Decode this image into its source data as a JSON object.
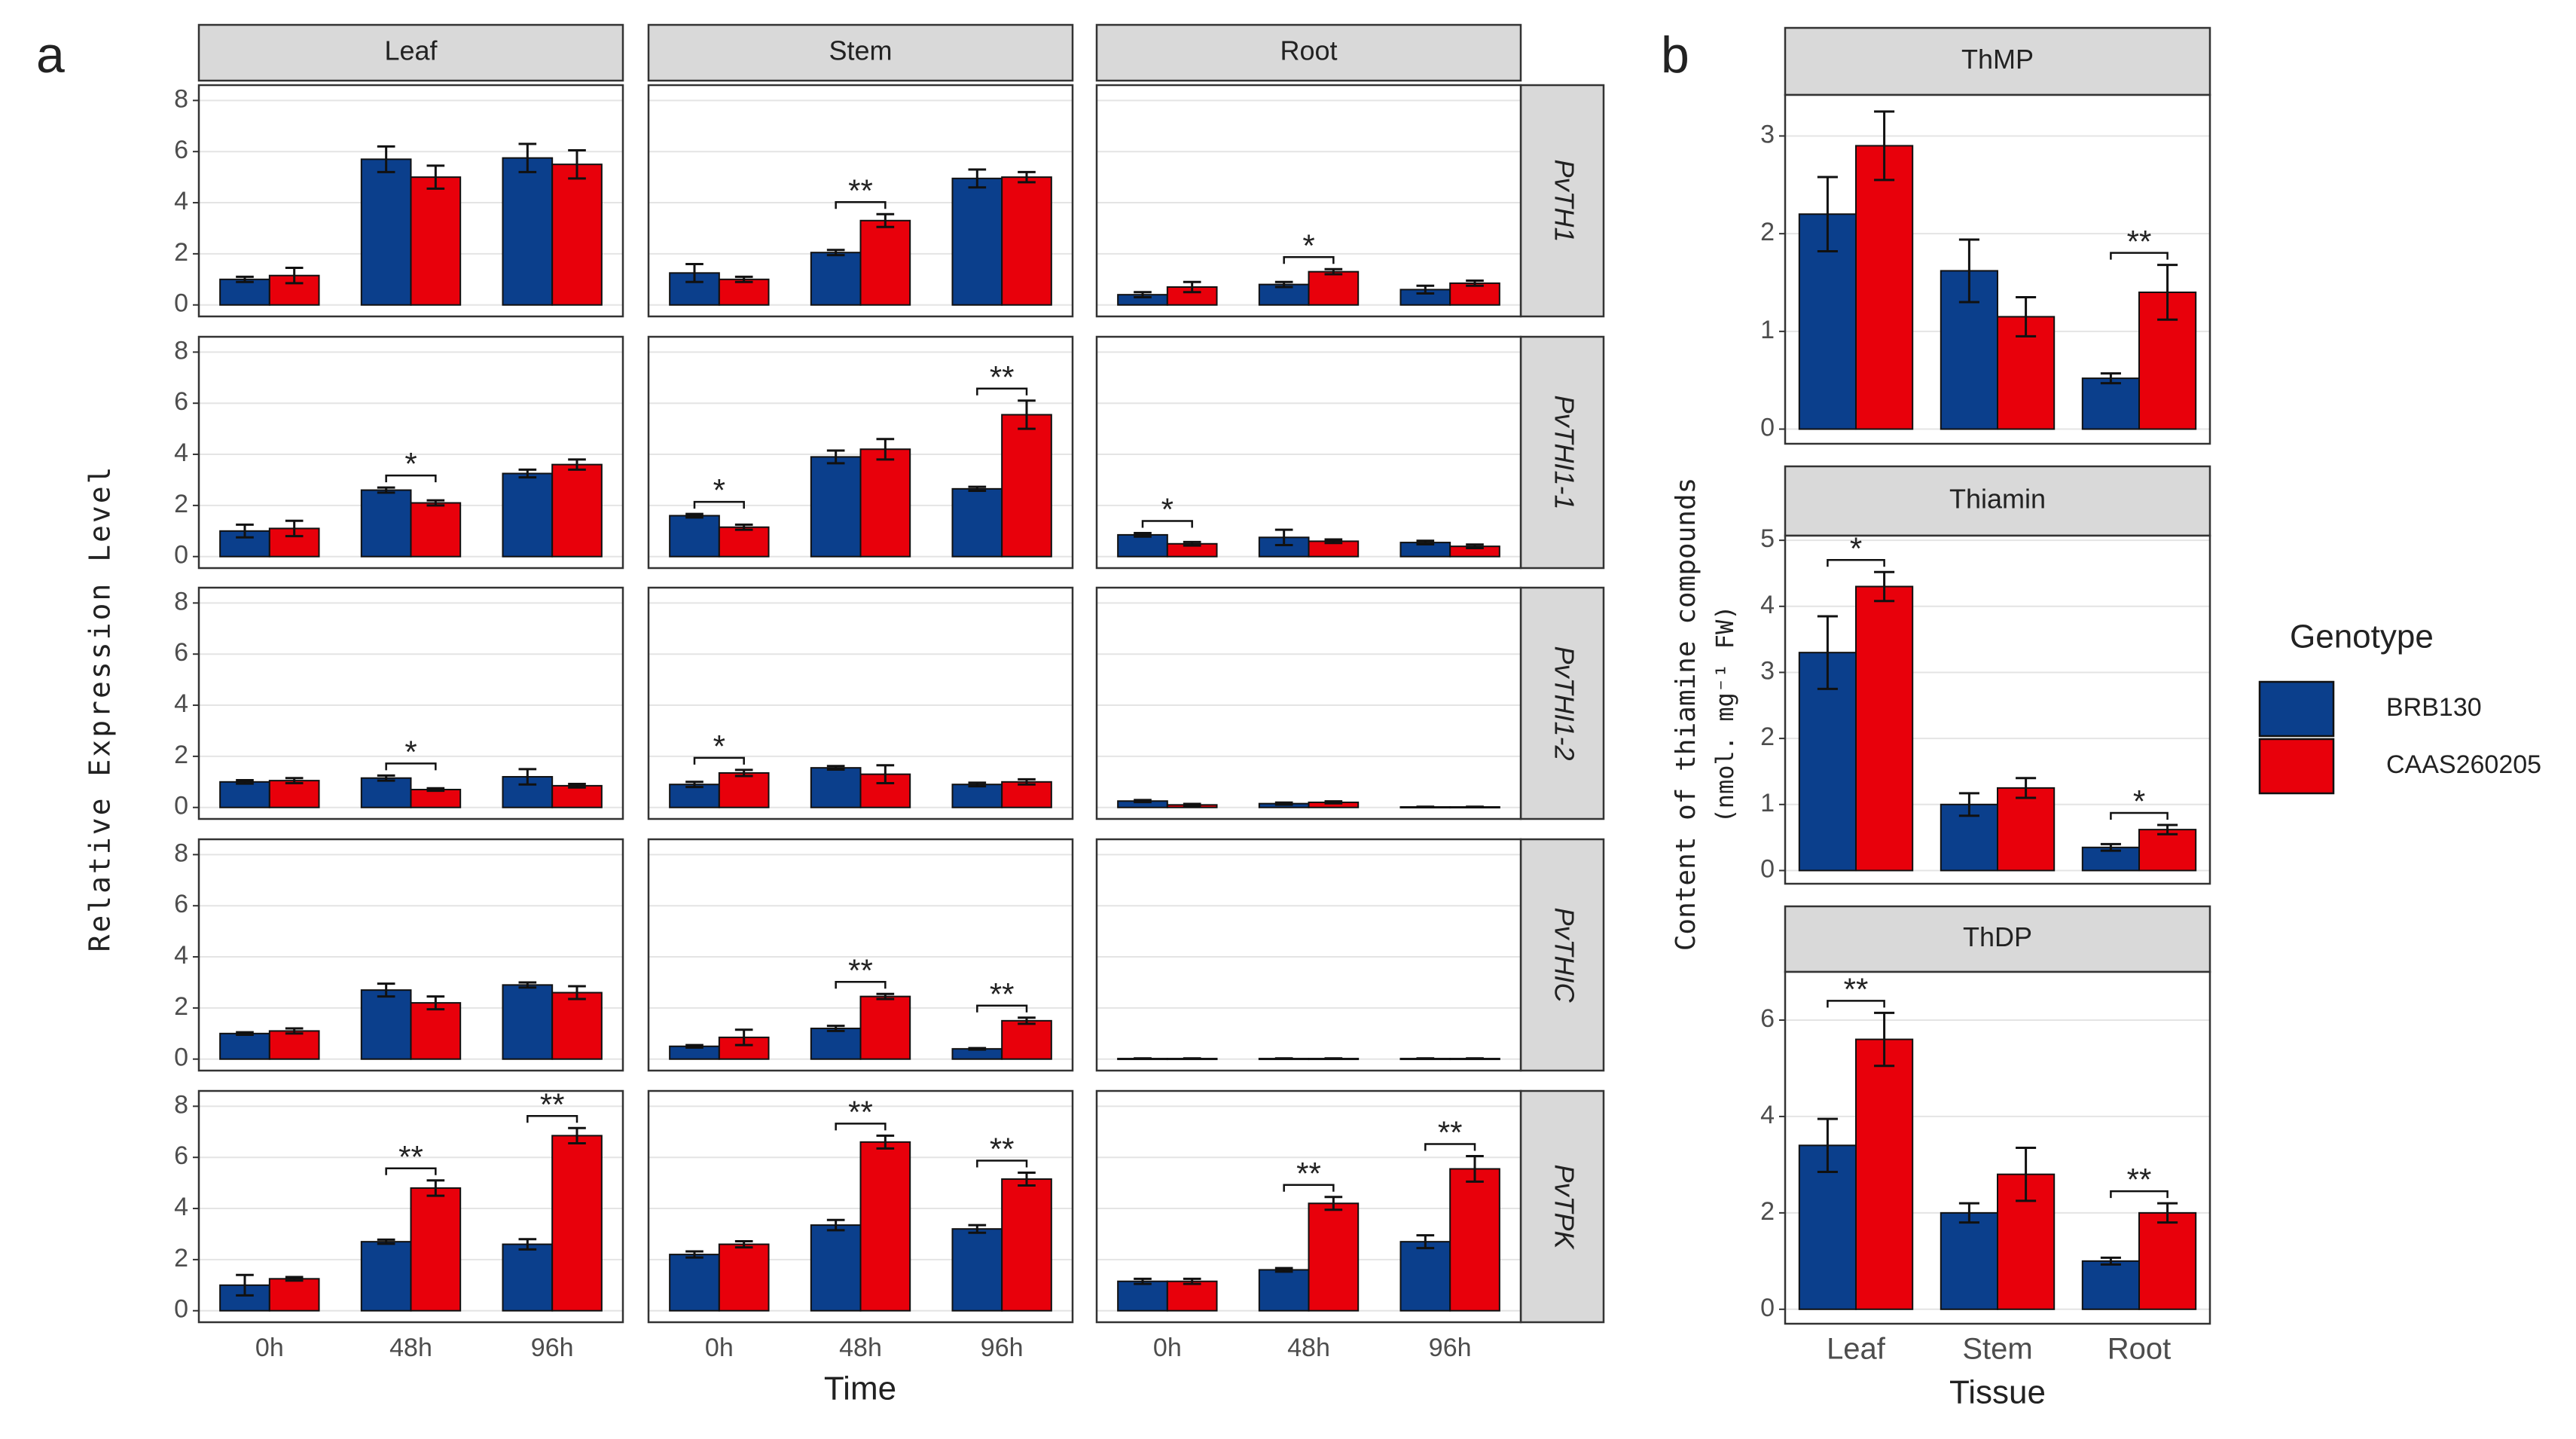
{
  "chart_data": [
    {
      "type": "bar",
      "label": "a",
      "x_title": "Time",
      "y_title": "Relative Expression Level",
      "columns": [
        "Leaf",
        "Stem",
        "Root"
      ],
      "rows": [
        "PvTH1",
        "PvTHI1-1",
        "PvTHI1-2",
        "PvTHIC",
        "PvTPK"
      ],
      "categories": [
        "0h",
        "48h",
        "96h"
      ],
      "colors": [
        "#0b3f8c",
        "#e8000b"
      ],
      "ylim": [
        -0.45,
        8.6
      ],
      "yticks": [
        0,
        2,
        4,
        6,
        8
      ],
      "grid": true,
      "facets": [
        {
          "values": [
            [
              1.0,
              5.7,
              5.75
            ],
            [
              1.15,
              5.0,
              5.5
            ]
          ],
          "errors": [
            [
              0.1,
              0.5,
              0.55
            ],
            [
              0.3,
              0.45,
              0.55
            ]
          ],
          "annotations": []
        },
        {
          "values": [
            [
              1.25,
              2.05,
              4.95
            ],
            [
              1.0,
              3.3,
              5.0
            ]
          ],
          "errors": [
            [
              0.35,
              0.1,
              0.35
            ],
            [
              0.1,
              0.25,
              0.2
            ]
          ],
          "annotations": [
            {
              "category": "48h",
              "text": "**"
            }
          ]
        },
        {
          "values": [
            [
              0.4,
              0.8,
              0.6
            ],
            [
              0.7,
              1.3,
              0.85
            ]
          ],
          "errors": [
            [
              0.1,
              0.1,
              0.15
            ],
            [
              0.2,
              0.1,
              0.1
            ]
          ],
          "annotations": [
            {
              "category": "48h",
              "text": "*"
            }
          ]
        },
        {
          "values": [
            [
              1.0,
              2.6,
              3.25
            ],
            [
              1.1,
              2.1,
              3.6
            ]
          ],
          "errors": [
            [
              0.25,
              0.1,
              0.15
            ],
            [
              0.3,
              0.1,
              0.2
            ]
          ],
          "annotations": [
            {
              "category": "48h",
              "text": "*"
            }
          ]
        },
        {
          "values": [
            [
              1.6,
              3.9,
              2.65
            ],
            [
              1.15,
              4.2,
              5.55
            ]
          ],
          "errors": [
            [
              0.07,
              0.25,
              0.08
            ],
            [
              0.1,
              0.4,
              0.55
            ]
          ],
          "annotations": [
            {
              "category": "0h",
              "text": "*"
            },
            {
              "category": "96h",
              "text": "**"
            }
          ]
        },
        {
          "values": [
            [
              0.85,
              0.75,
              0.55
            ],
            [
              0.5,
              0.6,
              0.4
            ]
          ],
          "errors": [
            [
              0.07,
              0.3,
              0.07
            ],
            [
              0.07,
              0.07,
              0.07
            ]
          ],
          "annotations": [
            {
              "category": "0h",
              "text": "*"
            }
          ]
        },
        {
          "values": [
            [
              1.0,
              1.15,
              1.2
            ],
            [
              1.05,
              0.7,
              0.85
            ]
          ],
          "errors": [
            [
              0.07,
              0.1,
              0.3
            ],
            [
              0.1,
              0.05,
              0.07
            ]
          ],
          "annotations": [
            {
              "category": "48h",
              "text": "*"
            }
          ]
        },
        {
          "values": [
            [
              0.9,
              1.55,
              0.9
            ],
            [
              1.35,
              1.3,
              1.0
            ]
          ],
          "errors": [
            [
              0.1,
              0.07,
              0.07
            ],
            [
              0.12,
              0.35,
              0.1
            ]
          ],
          "annotations": [
            {
              "category": "0h",
              "text": "*"
            }
          ]
        },
        {
          "values": [
            [
              0.25,
              0.15,
              0.02
            ],
            [
              0.1,
              0.2,
              0.02
            ]
          ],
          "errors": [
            [
              0.04,
              0.04,
              0.01
            ],
            [
              0.04,
              0.04,
              0.01
            ]
          ],
          "annotations": []
        },
        {
          "values": [
            [
              1.0,
              2.7,
              2.9
            ],
            [
              1.1,
              2.2,
              2.6
            ]
          ],
          "errors": [
            [
              0.05,
              0.25,
              0.1
            ],
            [
              0.1,
              0.25,
              0.25
            ]
          ],
          "annotations": []
        },
        {
          "values": [
            [
              0.5,
              1.2,
              0.4
            ],
            [
              0.85,
              2.45,
              1.5
            ]
          ],
          "errors": [
            [
              0.05,
              0.1,
              0.03
            ],
            [
              0.3,
              0.1,
              0.12
            ]
          ],
          "annotations": [
            {
              "category": "48h",
              "text": "**"
            },
            {
              "category": "96h",
              "text": "**"
            }
          ]
        },
        {
          "values": [
            [
              0.02,
              0.02,
              0.02
            ],
            [
              0.02,
              0.02,
              0.02
            ]
          ],
          "errors": [
            [
              0.01,
              0.01,
              0.01
            ],
            [
              0.01,
              0.01,
              0.01
            ]
          ],
          "annotations": []
        },
        {
          "values": [
            [
              1.0,
              2.7,
              2.6
            ],
            [
              1.25,
              4.8,
              6.85
            ]
          ],
          "errors": [
            [
              0.4,
              0.08,
              0.2
            ],
            [
              0.07,
              0.3,
              0.3
            ]
          ],
          "annotations": [
            {
              "category": "48h",
              "text": "**"
            },
            {
              "category": "96h",
              "text": "**"
            }
          ]
        },
        {
          "values": [
            [
              2.2,
              3.35,
              3.2
            ],
            [
              2.6,
              6.6,
              5.15
            ]
          ],
          "errors": [
            [
              0.12,
              0.2,
              0.15
            ],
            [
              0.12,
              0.25,
              0.25
            ]
          ],
          "annotations": [
            {
              "category": "48h",
              "text": "**"
            },
            {
              "category": "96h",
              "text": "**"
            }
          ]
        },
        {
          "values": [
            [
              1.15,
              1.6,
              2.7
            ],
            [
              1.15,
              4.2,
              5.55
            ]
          ],
          "errors": [
            [
              0.1,
              0.07,
              0.25
            ],
            [
              0.1,
              0.25,
              0.5
            ]
          ],
          "annotations": [
            {
              "category": "48h",
              "text": "**"
            },
            {
              "category": "96h",
              "text": "**"
            }
          ]
        }
      ]
    },
    {
      "type": "bar",
      "label": "b",
      "x_title": "Tissue",
      "y_title": [
        "Content of thiamine compounds",
        "(nmol. mg⁻¹ FW)"
      ],
      "categories": [
        "Leaf",
        "Stem",
        "Root"
      ],
      "legend_title": "Genotype",
      "series": [
        {
          "name": "BRB130",
          "color": "#0b3f8c"
        },
        {
          "name": "CAAS260205",
          "color": "#e8000b"
        }
      ],
      "grid": true,
      "facets": [
        {
          "title": "ThMP",
          "ylim": [
            -0.15,
            3.42
          ],
          "yticks": [
            0,
            1,
            2,
            3
          ],
          "values": [
            [
              2.2,
              1.62,
              0.52
            ],
            [
              2.9,
              1.15,
              1.4
            ]
          ],
          "errors": [
            [
              0.38,
              0.32,
              0.05
            ],
            [
              0.35,
              0.2,
              0.28
            ]
          ],
          "annotations": [
            {
              "category": "Root",
              "text": "**"
            }
          ]
        },
        {
          "title": "Thiamin",
          "ylim": [
            -0.2,
            5.07
          ],
          "yticks": [
            0,
            1,
            2,
            3,
            4,
            5
          ],
          "values": [
            [
              3.3,
              1.0,
              0.35
            ],
            [
              4.3,
              1.25,
              0.62
            ]
          ],
          "errors": [
            [
              0.55,
              0.17,
              0.05
            ],
            [
              0.22,
              0.15,
              0.07
            ]
          ],
          "annotations": [
            {
              "category": "Leaf",
              "text": "*"
            },
            {
              "category": "Root",
              "text": "*"
            }
          ]
        },
        {
          "title": "ThDP",
          "ylim": [
            -0.3,
            7.0
          ],
          "yticks": [
            0,
            2,
            4,
            6
          ],
          "values": [
            [
              3.4,
              2.0,
              1.0
            ],
            [
              5.6,
              2.8,
              2.0
            ]
          ],
          "errors": [
            [
              0.55,
              0.2,
              0.07
            ],
            [
              0.55,
              0.55,
              0.2
            ]
          ],
          "annotations": [
            {
              "category": "Leaf",
              "text": "**"
            },
            {
              "category": "Root",
              "text": "**"
            }
          ]
        }
      ]
    }
  ]
}
